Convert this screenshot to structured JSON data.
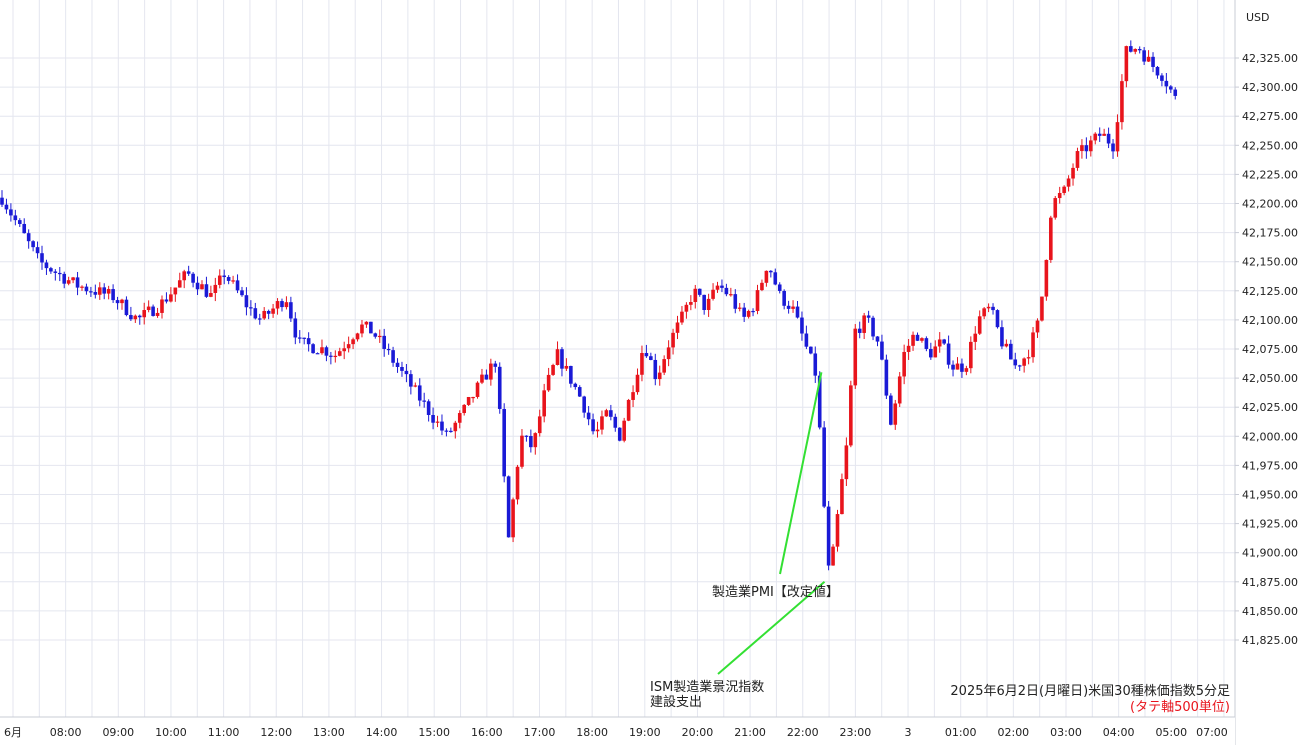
{
  "chart_data": {
    "type": "candlestick",
    "currency_label": "USD",
    "y_ticks": [
      42325,
      42300,
      42275,
      42250,
      42225,
      42200,
      42175,
      42150,
      42125,
      42100,
      42075,
      42050,
      42025,
      42000,
      41975,
      41950,
      41925,
      41900,
      41875,
      41850,
      41825
    ],
    "y_tick_labels": [
      "42,325.00",
      "42,300.00",
      "42,275.00",
      "42,250.00",
      "42,225.00",
      "42,200.00",
      "42,175.00",
      "42,150.00",
      "42,125.00",
      "42,100.00",
      "42,075.00",
      "42,050.00",
      "42,025.00",
      "42,000.00",
      "41,975.00",
      "41,950.00",
      "41,925.00",
      "41,900.00",
      "41,875.00",
      "41,850.00",
      "41,825.00"
    ],
    "x_tick_labels": [
      "6月",
      "08:00",
      "09:00",
      "10:00",
      "11:00",
      "12:00",
      "13:00",
      "14:00",
      "15:00",
      "16:00",
      "17:00",
      "18:00",
      "19:00",
      "20:00",
      "21:00",
      "22:00",
      "23:00",
      "3",
      "01:00",
      "02:00",
      "03:00",
      "04:00",
      "05:00",
      "07:00"
    ],
    "colors": {
      "up": "#e8141c",
      "down": "#1a1ad6",
      "grid": "#e4e6ef",
      "annotation_line": "#33e033",
      "label_red": "#e8141c"
    },
    "close_path": [
      [
        0,
        42205
      ],
      [
        3,
        42150
      ],
      [
        6,
        42130
      ],
      [
        9,
        42120
      ],
      [
        11,
        42100
      ],
      [
        13,
        42115
      ],
      [
        15,
        42140
      ],
      [
        17,
        42120
      ],
      [
        18,
        42140
      ],
      [
        20,
        42110
      ],
      [
        21,
        42100
      ],
      [
        23,
        42120
      ],
      [
        24,
        42080
      ],
      [
        26,
        42075
      ],
      [
        27,
        42070
      ],
      [
        29,
        42095
      ],
      [
        30,
        42090
      ],
      [
        32,
        42060
      ],
      [
        34,
        42030
      ],
      [
        36,
        42000
      ],
      [
        37,
        42015
      ],
      [
        39,
        42050
      ],
      [
        40,
        42065
      ],
      [
        41,
        41910
      ],
      [
        42,
        42000
      ],
      [
        43,
        41990
      ],
      [
        44,
        42040
      ],
      [
        45,
        42070
      ],
      [
        46,
        42050
      ],
      [
        47,
        42030
      ],
      [
        48,
        42000
      ],
      [
        49,
        42020
      ],
      [
        50,
        42000
      ],
      [
        51,
        42040
      ],
      [
        52,
        42080
      ],
      [
        53,
        42050
      ],
      [
        54,
        42080
      ],
      [
        55,
        42100
      ],
      [
        56,
        42125
      ],
      [
        57,
        42110
      ],
      [
        58,
        42130
      ],
      [
        59,
        42120
      ],
      [
        60,
        42100
      ],
      [
        61,
        42115
      ],
      [
        62,
        42150
      ],
      [
        63,
        42120
      ],
      [
        64,
        42110
      ],
      [
        65,
        42080
      ],
      [
        66,
        42050
      ],
      [
        66.4,
        41965
      ],
      [
        67,
        41875
      ],
      [
        68,
        41960
      ],
      [
        68.5,
        42000
      ],
      [
        69,
        42090
      ],
      [
        70,
        42100
      ],
      [
        71,
        42080
      ],
      [
        72,
        42010
      ],
      [
        73,
        42070
      ],
      [
        74,
        42090
      ],
      [
        75,
        42070
      ],
      [
        76,
        42080
      ],
      [
        77,
        42060
      ],
      [
        78,
        42060
      ],
      [
        79,
        42100
      ],
      [
        80,
        42110
      ],
      [
        81,
        42080
      ],
      [
        82,
        42060
      ],
      [
        83,
        42070
      ],
      [
        84,
        42100
      ],
      [
        85,
        42200
      ],
      [
        86,
        42210
      ],
      [
        87,
        42240
      ],
      [
        88,
        42250
      ],
      [
        89,
        42260
      ],
      [
        90,
        42250
      ],
      [
        91,
        42330
      ],
      [
        92,
        42335
      ],
      [
        93,
        42320
      ],
      [
        94,
        42310
      ],
      [
        95,
        42290
      ]
    ],
    "annotations": [
      {
        "lines": [
          "製造業PMI【改定値】"
        ],
        "at_hour": 66.35,
        "at_value": 42055
      },
      {
        "lines": [
          "ISM製造業景況指数",
          "建設支出"
        ],
        "at_hour": 66.6,
        "at_value": 41875
      }
    ],
    "caption_lines": [
      "2025年6月2日(月曜日)米国30種株価指数5分足",
      "(タテ軸500単位)"
    ]
  }
}
